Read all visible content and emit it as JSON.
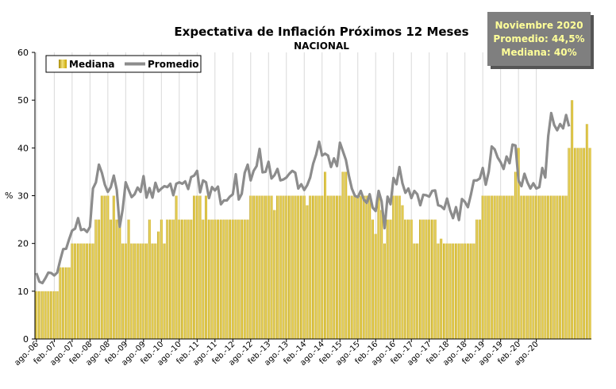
{
  "chart_data": {
    "type": "bar",
    "title": "Expectativa de Inflación Próximos 12 Meses",
    "subtitle": "NACIONAL",
    "ylabel": "%",
    "ylim": [
      0,
      60
    ],
    "yticks": [
      0,
      10,
      20,
      30,
      40,
      50,
      60
    ],
    "grid": "vertical",
    "legend_position": "top-left",
    "x_tick_labels": [
      "ago.-06",
      "feb.-07",
      "ago.-07",
      "feb.-08",
      "ago.-08",
      "feb.-09",
      "ago.-09",
      "feb.-10",
      "ago.-10",
      "feb.-11",
      "ago.-11",
      "feb.-12",
      "ago.-12",
      "feb.-13",
      "ago.-13",
      "feb.-14",
      "ago.-14",
      "feb.-15",
      "ago.-15",
      "feb.-16",
      "ago.-16",
      "feb.-17",
      "ago.-17",
      "feb.-18",
      "ago.-18",
      "feb.-19",
      "ago.-19",
      "feb.-20",
      "ago.-20"
    ],
    "series": [
      {
        "name": "Mediana",
        "kind": "bar",
        "color": "#c9a400",
        "values": [
          10,
          10,
          10,
          10,
          10,
          10,
          10,
          10,
          15,
          15,
          15,
          15,
          20,
          20,
          20,
          20,
          20,
          20,
          20,
          20,
          25,
          25,
          30,
          30,
          30,
          25,
          30,
          25,
          25,
          20,
          20,
          25,
          20,
          20,
          20,
          20,
          20,
          20,
          25,
          20,
          20,
          22.5,
          25,
          20,
          25,
          25,
          25,
          30,
          25,
          25,
          25,
          25,
          25,
          30,
          30,
          30,
          25,
          30,
          25,
          25,
          25,
          25,
          25,
          25,
          25,
          25,
          25,
          25,
          25,
          25,
          25,
          25,
          30,
          30,
          30,
          30,
          30,
          30,
          30,
          30,
          27,
          30,
          30,
          30,
          30,
          30,
          30,
          30,
          30,
          30,
          30,
          28,
          30,
          30,
          30,
          30,
          30,
          35,
          30,
          30,
          30,
          30,
          30,
          35,
          35,
          30,
          30,
          30,
          30,
          30,
          30,
          30,
          30,
          25,
          22,
          30,
          27,
          20,
          25,
          25,
          30,
          30,
          30,
          28,
          25,
          25,
          25,
          20,
          20,
          25,
          25,
          25,
          25,
          25,
          25,
          20,
          21,
          20,
          20,
          20,
          20,
          20,
          20,
          20,
          20,
          20,
          20,
          20,
          25,
          25,
          30,
          30,
          30,
          30,
          30,
          30,
          30,
          30,
          30,
          30,
          30,
          35,
          40,
          30,
          30,
          30,
          30,
          30,
          30,
          30,
          30,
          30,
          30,
          30,
          30,
          30,
          30,
          30,
          30,
          40,
          50,
          40,
          40,
          40,
          40,
          45,
          40
        ]
      },
      {
        "name": "Promedio",
        "kind": "line",
        "color": "#8c8c8c",
        "values": [
          13.8,
          12,
          11.7,
          12.7,
          13.9,
          13.8,
          13.3,
          13.9,
          16.5,
          18.8,
          18.9,
          20.9,
          22.7,
          23.1,
          25.3,
          22.8,
          23,
          22.4,
          23.5,
          31.5,
          32.8,
          36.5,
          34.8,
          32.3,
          30.8,
          31.8,
          34.2,
          31.2,
          23.5,
          27.2,
          32.8,
          31.2,
          29.7,
          30.3,
          31.7,
          30.8,
          34.1,
          29.6,
          31.6,
          29.6,
          32.7,
          30.9,
          31.5,
          32,
          31.8,
          32.5,
          30.1,
          32.5,
          32.8,
          32.5,
          33,
          31.4,
          33.9,
          34.2,
          35.2,
          30.7,
          33.2,
          32.8,
          29.5,
          31.8,
          31.1,
          31.9,
          28.2,
          29,
          29,
          29.8,
          30.3,
          34.5,
          29.2,
          30.4,
          34.8,
          36.5,
          33.2,
          35.2,
          36.2,
          39.8,
          34.9,
          35,
          37.1,
          33.6,
          34.3,
          35.6,
          33.2,
          33.4,
          33.8,
          34.6,
          35.2,
          34.8,
          31.5,
          32.4,
          31.2,
          32.2,
          33.8,
          36.7,
          38.6,
          41.3,
          38.4,
          38.8,
          38.4,
          36,
          37.8,
          36.2,
          41.1,
          39.3,
          37.5,
          34.2,
          31.5,
          30,
          29.7,
          31,
          29.2,
          28.5,
          30.3,
          27.5,
          26.8,
          31,
          28.8,
          23.2,
          29.8,
          28.2,
          33.7,
          32.4,
          36,
          32.6,
          30.6,
          31.5,
          29.5,
          31,
          30.3,
          28,
          30.2,
          30.1,
          29.8,
          31,
          31.1,
          28,
          27.8,
          27.2,
          29.4,
          27,
          25.3,
          27.6,
          24.9,
          29.3,
          28.7,
          27.6,
          30.2,
          33.2,
          33.2,
          33.6,
          35.8,
          32.3,
          35,
          40.3,
          39.7,
          38,
          37,
          35.6,
          38.2,
          36.8,
          40.7,
          40.5,
          33.2,
          32,
          34.6,
          32.8,
          31.5,
          32.6,
          31.5,
          31.8,
          35.8,
          33.8,
          42.5,
          47.3,
          44.8,
          43.7,
          45,
          44.1,
          46.9,
          44.5
        ]
      }
    ],
    "annotation": {
      "line1": "Noviembre 2020",
      "line2": "Promedio: 44,5%",
      "line3": "Mediana: 40%",
      "bg_color": "#7f7f7f",
      "text_color": "#ffff99"
    },
    "colors": {
      "bar": "#c9a400",
      "bar_highlight": "#f2e27a",
      "line": "#8c8c8c",
      "grid": "#d9d9d9",
      "axis": "#000000"
    }
  }
}
